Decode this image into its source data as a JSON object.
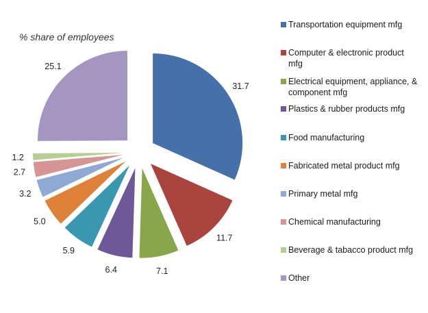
{
  "chart_data": {
    "type": "pie",
    "title": "% share of employees",
    "exploded": true,
    "categories": [
      "Transportation equipment mfg",
      "Computer & electronic product mfg",
      "Electrical equipment, appliance, & component mfg",
      "Plastics & rubber products mfg",
      "Food manufacturing",
      "Fabricated metal product mfg",
      "Primary metal mfg",
      "Chemical manufacturing",
      "Beverage & tabacco product mfg",
      "Other"
    ],
    "values": [
      31.7,
      11.7,
      7.1,
      6.4,
      5.9,
      5.0,
      3.2,
      2.7,
      1.2,
      25.1
    ],
    "value_labels": [
      "31.7",
      "11.7",
      "7.1",
      "6.4",
      "5.9",
      "5.0",
      "3.2",
      "2.7",
      "1.2",
      "25.1"
    ],
    "colors": [
      "#4571a8",
      "#a9443f",
      "#89a64a",
      "#6e5897",
      "#3a97b0",
      "#de823a",
      "#8ea9d4",
      "#d69594",
      "#b5cf92",
      "#a596c1"
    ],
    "legend_position": "right"
  }
}
